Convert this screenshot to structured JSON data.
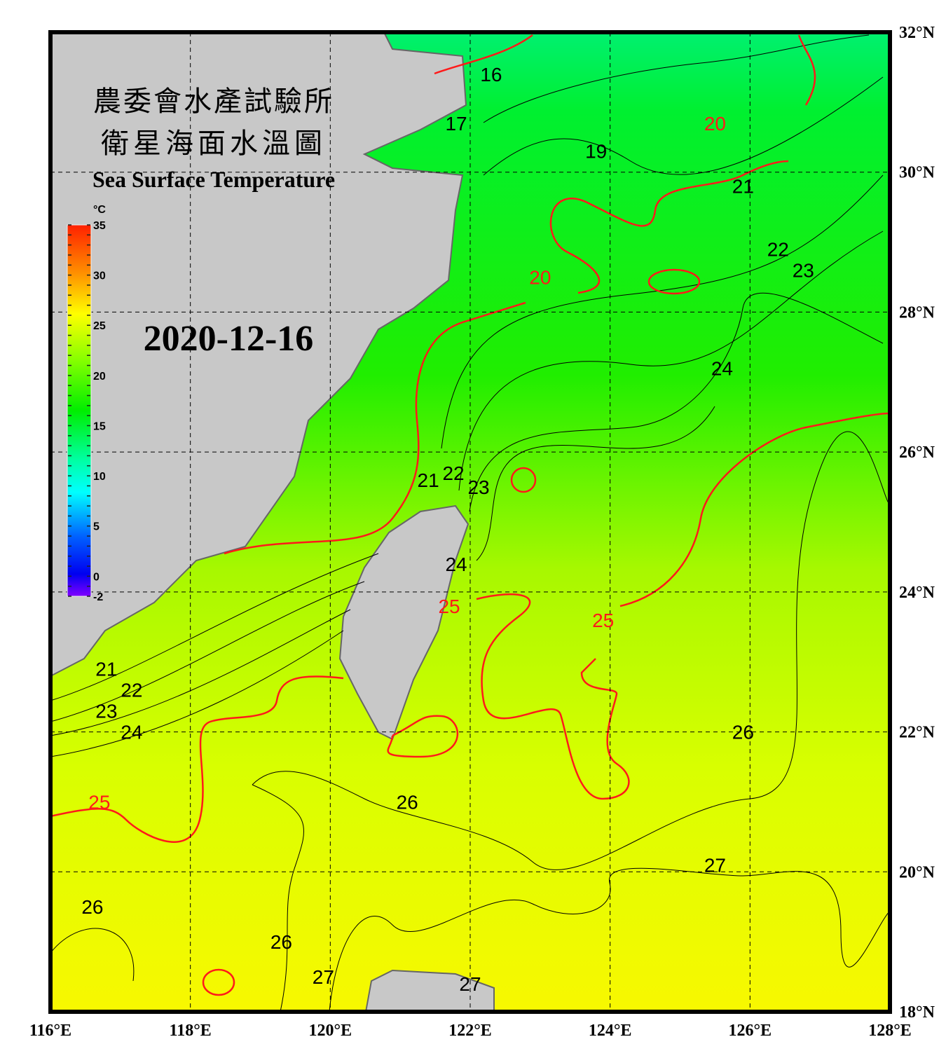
{
  "title": {
    "line1": "農委會水產試驗所",
    "line2": "衛星海面水溫圖",
    "english": "Sea Surface Temperature"
  },
  "date": "2020-12-16",
  "colorbar": {
    "unit": "°C",
    "ticks": [
      "35",
      "30",
      "25",
      "20",
      "15",
      "10",
      "5",
      "0",
      "-2"
    ],
    "range": [
      -2,
      35
    ]
  },
  "axes": {
    "lon_labels": [
      "116°E",
      "118°E",
      "120°E",
      "122°E",
      "124°E",
      "126°E",
      "128°E"
    ],
    "lat_labels": [
      "32°N",
      "30°N",
      "28°N",
      "26°N",
      "24°N",
      "22°N",
      "20°N",
      "18°N"
    ],
    "lon_range": [
      116,
      128
    ],
    "lat_range": [
      18,
      32
    ]
  },
  "colors": {
    "land": "#c8c8c8",
    "highlight_contour": "#ff1a1a",
    "contour": "#000000",
    "warm_sea": "#f0ff00",
    "cool_sea": "#00ee30"
  },
  "contour_labels": [
    {
      "text": "16",
      "lon": 122.3,
      "lat": 31.3,
      "red": false
    },
    {
      "text": "17",
      "lon": 121.8,
      "lat": 30.6,
      "red": false
    },
    {
      "text": "19",
      "lon": 123.8,
      "lat": 30.2,
      "red": false
    },
    {
      "text": "20",
      "lon": 125.5,
      "lat": 30.6,
      "red": true
    },
    {
      "text": "21",
      "lon": 125.9,
      "lat": 29.7,
      "red": false
    },
    {
      "text": "20",
      "lon": 123.0,
      "lat": 28.4,
      "red": true
    },
    {
      "text": "22",
      "lon": 126.4,
      "lat": 28.8,
      "red": false
    },
    {
      "text": "23",
      "lon": 126.2,
      "lat": 28.5,
      "red": false
    },
    {
      "text": "24",
      "lon": 125.6,
      "lat": 27.1,
      "red": false
    },
    {
      "text": "21",
      "lon": 121.4,
      "lat": 25.5,
      "red": false
    },
    {
      "text": "22",
      "lon": 121.6,
      "lat": 25.6,
      "red": false
    },
    {
      "text": "23",
      "lon": 121.8,
      "lat": 25.4,
      "red": false
    },
    {
      "text": "24",
      "lon": 121.8,
      "lat": 24.3,
      "red": false
    },
    {
      "text": "25",
      "lon": 121.7,
      "lat": 23.7,
      "red": true
    },
    {
      "text": "25",
      "lon": 123.9,
      "lat": 23.5,
      "red": true
    },
    {
      "text": "21",
      "lon": 116.8,
      "lat": 22.8,
      "red": false
    },
    {
      "text": "22",
      "lon": 116.8,
      "lat": 22.5,
      "red": false
    },
    {
      "text": "23",
      "lon": 116.8,
      "lat": 22.2,
      "red": false
    },
    {
      "text": "24",
      "lon": 116.8,
      "lat": 21.9,
      "red": false
    },
    {
      "text": "25",
      "lon": 116.7,
      "lat": 20.9,
      "red": true
    },
    {
      "text": "26",
      "lon": 121.1,
      "lat": 20.9,
      "red": false
    },
    {
      "text": "26",
      "lon": 125.9,
      "lat": 21.9,
      "red": false
    },
    {
      "text": "27",
      "lon": 125.5,
      "lat": 20.0,
      "red": false
    },
    {
      "text": "26",
      "lon": 116.6,
      "lat": 19.4,
      "red": false
    },
    {
      "text": "26",
      "lon": 119.3,
      "lat": 18.9,
      "red": false
    },
    {
      "text": "27",
      "lon": 119.9,
      "lat": 18.4,
      "red": false
    },
    {
      "text": "27",
      "lon": 122.0,
      "lat": 18.3,
      "red": false
    }
  ]
}
